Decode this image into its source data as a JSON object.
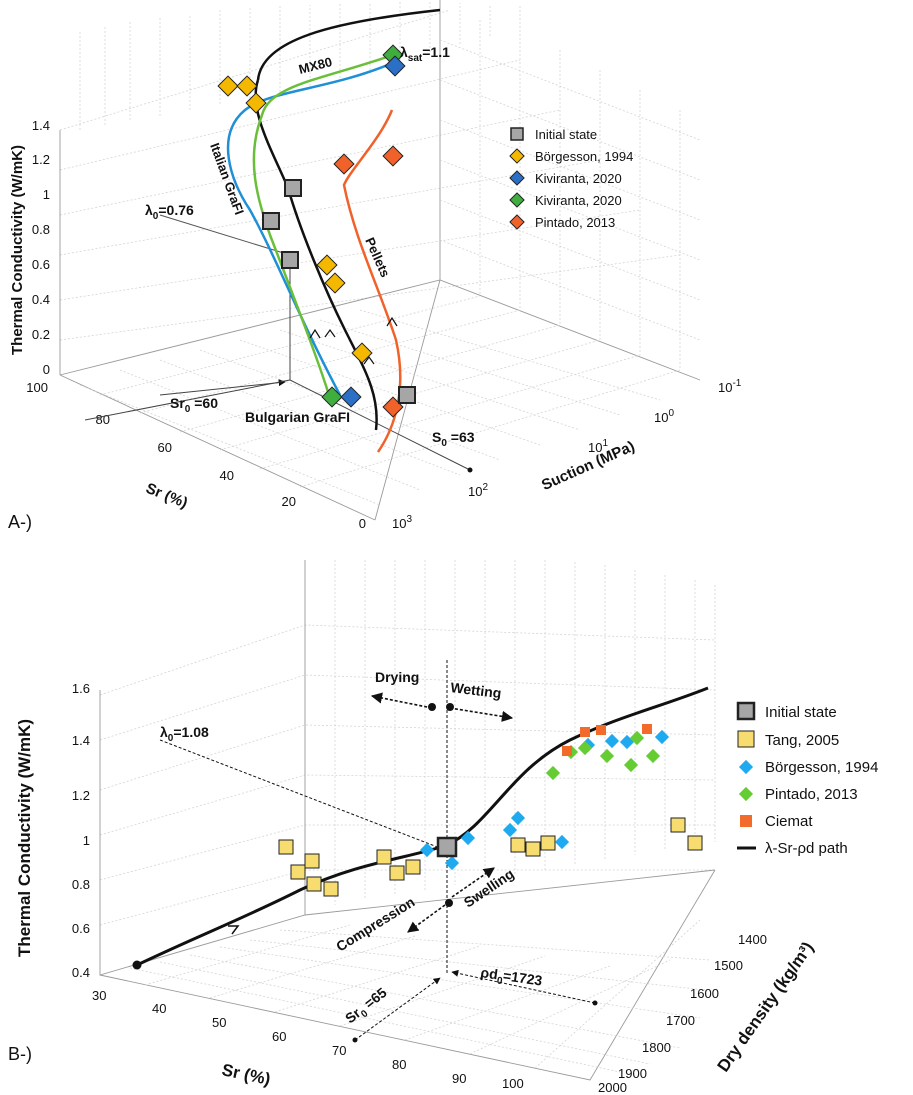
{
  "chart_data": [
    {
      "type": "scatter",
      "panel_label": "A-)",
      "title": "",
      "zlabel": "Thermal Conductivity (W/mK)",
      "xlabel": "Sr (%)",
      "ylabel": "Suction (MPa)",
      "z_ticks": [
        "0",
        "0.2",
        "0.4",
        "0.6",
        "0.8",
        "1",
        "1.2",
        "1.4"
      ],
      "sr_ticks": [
        "100",
        "80",
        "60",
        "40",
        "20",
        "0"
      ],
      "suction_ticks": [
        {
          "base": "10",
          "exp": "-1"
        },
        {
          "base": "10",
          "exp": "0"
        },
        {
          "base": "10",
          "exp": "1"
        },
        {
          "base": "10",
          "exp": "2"
        },
        {
          "base": "10",
          "exp": "3"
        }
      ],
      "legend": [
        {
          "label": "Initial state",
          "marker": "square",
          "color": "#a6a6a6"
        },
        {
          "label": "Börgesson, 1994",
          "marker": "diamond",
          "color": "#f5b800"
        },
        {
          "label": "Kiviranta, 2020",
          "marker": "diamond",
          "color": "#2b6fc6"
        },
        {
          "label": "Kiviranta, 2020",
          "marker": "diamond",
          "color": "#3fae3f"
        },
        {
          "label": "Pintado, 2013",
          "marker": "diamond",
          "color": "#f0622a"
        }
      ],
      "series": [
        {
          "name": "MX80 path",
          "color": "#111111",
          "approx_lambda_range": [
            0.1,
            1.4
          ]
        },
        {
          "name": "Italian GraFI path",
          "color": "#1f8fd6"
        },
        {
          "name": "Bulgarian GraFI path",
          "color": "#6abf3a"
        },
        {
          "name": "Pellets path",
          "color": "#f0622a"
        },
        {
          "name": "Initial state",
          "values": [
            1.05,
            0.87,
            0.63,
            0.2
          ]
        }
      ],
      "annotations": {
        "mx80": "MX80",
        "italian": "Italian GraFI",
        "bulgarian": "Bulgarian GraFI",
        "pellets": "Pellets",
        "lambda_sat": {
          "main": "λ",
          "sub": "sat",
          "rest": "=1.1"
        },
        "lambda0": {
          "main": "λ",
          "sub": "0",
          "rest": "=0.76"
        },
        "sr0": "Sr",
        "sr0_sub": "0",
        "sr0_val": " =60",
        "s0": "S",
        "s0_sub": "0",
        "s0_val": " =63"
      }
    },
    {
      "type": "scatter",
      "panel_label": "B-)",
      "title": "",
      "zlabel": "Thermal Conductivity (W/mK)",
      "xlabel": "Sr (%)",
      "ylabel": "Dry density (kg/m³)",
      "z_ticks": [
        "0.4",
        "0.6",
        "0.8",
        "1",
        "1.2",
        "1.4",
        "1.6"
      ],
      "sr_ticks": [
        "30",
        "40",
        "50",
        "60",
        "70",
        "80",
        "90",
        "100"
      ],
      "rho_ticks": [
        "1400",
        "1500",
        "1600",
        "1700",
        "1800",
        "1900",
        "2000"
      ],
      "legend": [
        {
          "label": "Initial state",
          "marker": "square",
          "color": "#a6a6a6"
        },
        {
          "label": "Tang, 2005",
          "marker": "square",
          "color": "#f7dc6f"
        },
        {
          "label": "Börgesson, 1994",
          "marker": "diamond",
          "color": "#1faaf0"
        },
        {
          "label": "Pintado, 2013",
          "marker": "diamond",
          "color": "#66cc33"
        },
        {
          "label": "Ciemat",
          "marker": "square",
          "color": "#f26b2a"
        },
        {
          "label": "λ-Sr-ρd path",
          "marker": "line",
          "color": "#111111"
        }
      ],
      "series": [
        {
          "name": "Tang, 2005",
          "lambda": [
            0.96,
            0.86,
            0.9,
            0.81,
            0.79,
            0.92,
            0.86,
            0.88,
            0.97,
            0.95,
            0.97,
            1.16,
            1.09
          ]
        },
        {
          "name": "Börgesson, 1994",
          "lambda": [
            0.96,
            1.01,
            1.1,
            1.14,
            1.19,
            1.09,
            1.33,
            1.39,
            1.37,
            1.4
          ]
        },
        {
          "name": "Pintado, 2013",
          "lambda": [
            1.27,
            1.34,
            1.37,
            1.38,
            1.32,
            1.33,
            1.4
          ]
        },
        {
          "name": "Ciemat",
          "lambda": [
            1.35,
            1.42,
            1.43,
            1.43
          ]
        },
        {
          "name": "Initial state",
          "lambda": [
            1.08
          ],
          "sr": [
            65
          ],
          "rho_d": [
            1723
          ]
        }
      ],
      "annotations": {
        "drying": "Drying",
        "wetting": "Wetting",
        "compression": "Compression",
        "swelling": "Swelling",
        "lambda0": {
          "main": "λ",
          "sub": "0",
          "rest": "=1.08"
        },
        "sr0": "Sr",
        "sr0_sub": "0",
        "sr0_val": " =65",
        "rhod0": "ρd",
        "rhod0_sub": "0",
        "rhod0_val": "=1723"
      }
    }
  ]
}
